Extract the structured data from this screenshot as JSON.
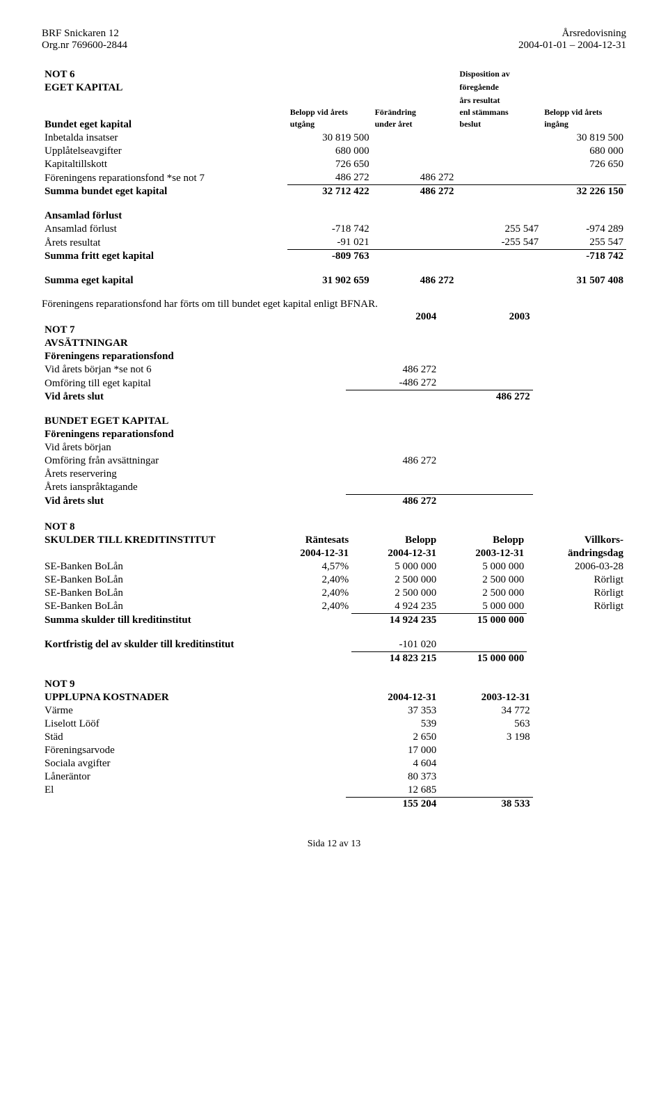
{
  "header": {
    "left1": "BRF Snickaren 12",
    "left2": "Org.nr 769600-2844",
    "right1": "Årsredovisning",
    "right2": "2004-01-01 – 2004-12-31"
  },
  "not6": {
    "title1": "NOT 6",
    "title2": "EGET KAPITAL",
    "col_labels": {
      "c2a": "Belopp vid årets",
      "c2b": "utgång",
      "c3a": "Förändring",
      "c3b": "under året",
      "c4a": "Disposition av",
      "c4b": "föregående",
      "c4c": "års resultat",
      "c4d": "enl stämmans",
      "c4e": "beslut",
      "c5a": "Belopp vid årets",
      "c5b": "ingång"
    },
    "section1_title": "Bundet eget kapital",
    "rows1": [
      {
        "label": "Inbetalda insatser",
        "c2": "30 819 500",
        "c3": "",
        "c4": "",
        "c5": "30 819 500"
      },
      {
        "label": "Upplåtelseavgifter",
        "c2": "680 000",
        "c3": "",
        "c4": "",
        "c5": "680 000"
      },
      {
        "label": "Kapitaltillskott",
        "c2": "726 650",
        "c3": "",
        "c4": "",
        "c5": "726 650"
      },
      {
        "label": "Föreningens reparationsfond *se not 7",
        "c2": "486 272",
        "c3": "486 272",
        "c4": "",
        "c5": ""
      }
    ],
    "sum1": {
      "label": "Summa bundet eget kapital",
      "c2": "32 712 422",
      "c3": "486 272",
      "c4": "",
      "c5": "32 226 150"
    },
    "section2_title": "Ansamlad förlust",
    "rows2": [
      {
        "label": "Ansamlad förlust",
        "c2": "-718 742",
        "c3": "",
        "c4": "255 547",
        "c5": "-974 289"
      },
      {
        "label": "Årets resultat",
        "c2": "-91 021",
        "c3": "",
        "c4": "-255 547",
        "c5": "255 547"
      }
    ],
    "sum2": {
      "label": "Summa fritt eget kapital",
      "c2": "-809 763",
      "c3": "",
      "c4": "",
      "c5": "-718 742"
    },
    "total": {
      "label": "Summa eget kapital",
      "c2": "31 902 659",
      "c3": "486 272",
      "c4": "",
      "c5": "31 507 408"
    },
    "note_text": "Föreningens reparationsfond har förts om till bundet eget kapital enligt BFNAR."
  },
  "not7": {
    "year_2004": "2004",
    "year_2003": "2003",
    "title1": "NOT 7",
    "title2": "AVSÄTTNINGAR",
    "sub1": "Föreningens reparationsfond",
    "rows1": [
      {
        "label": "Vid årets början *se not 6",
        "c2": "486 272",
        "c3": ""
      },
      {
        "label": "Omföring till eget kapital",
        "c2": "-486 272",
        "c3": ""
      }
    ],
    "sum1": {
      "label": "Vid årets slut",
      "c2": "",
      "c3": "486 272"
    },
    "bek_title": "BUNDET EGET KAPITAL",
    "sub2": "Föreningens reparationsfond",
    "rows2": [
      {
        "label": "Vid årets början",
        "c2": "",
        "c3": ""
      },
      {
        "label": "Omföring från avsättningar",
        "c2": "486 272",
        "c3": ""
      },
      {
        "label": "Årets reservering",
        "c2": "",
        "c3": ""
      },
      {
        "label": "Årets ianspråktagande",
        "c2": "",
        "c3": ""
      }
    ],
    "sum2": {
      "label": "Vid årets slut",
      "c2": "486 272",
      "c3": ""
    }
  },
  "not8": {
    "title1": "NOT 8",
    "title2": "SKULDER TILL KREDITINSTITUT",
    "headers": {
      "c2": "Räntesats",
      "c3": "Belopp",
      "c4": "Belopp",
      "c5": "Villkors-",
      "d2": "2004-12-31",
      "d3": "2004-12-31",
      "d4": "2003-12-31",
      "d5": "ändringsdag"
    },
    "rows": [
      {
        "label": "SE-Banken BoLån",
        "c2": "4,57%",
        "c3": "5 000 000",
        "c4": "5 000 000",
        "c5": "2006-03-28"
      },
      {
        "label": "SE-Banken BoLån",
        "c2": "2,40%",
        "c3": "2 500 000",
        "c4": "2 500 000",
        "c5": "Rörligt"
      },
      {
        "label": "SE-Banken BoLån",
        "c2": "2,40%",
        "c3": "2 500 000",
        "c4": "2 500 000",
        "c5": "Rörligt"
      },
      {
        "label": "SE-Banken BoLån",
        "c2": "2,40%",
        "c3": "4 924 235",
        "c4": "5 000 000",
        "c5": "Rörligt"
      }
    ],
    "sum": {
      "label": "Summa skulder till kreditinstitut",
      "c3": "14 924 235",
      "c4": "15 000 000"
    },
    "short": {
      "label": "Kortfristig del av skulder till kreditinstitut",
      "c3": "-101 020",
      "c4": ""
    },
    "net": {
      "c3": "14 823 215",
      "c4": "15 000 000"
    }
  },
  "not9": {
    "title1": "NOT 9",
    "title2": "UPPLUPNA KOSTNADER",
    "h1": "2004-12-31",
    "h2": "2003-12-31",
    "rows": [
      {
        "label": "Värme",
        "c2": "37 353",
        "c3": "34 772"
      },
      {
        "label": "Liselott Lööf",
        "c2": "539",
        "c3": "563"
      },
      {
        "label": "Städ",
        "c2": "2 650",
        "c3": "3 198"
      },
      {
        "label": "Föreningsarvode",
        "c2": "17 000",
        "c3": ""
      },
      {
        "label": "Sociala avgifter",
        "c2": "4 604",
        "c3": ""
      },
      {
        "label": "Låneräntor",
        "c2": "80 373",
        "c3": ""
      },
      {
        "label": "El",
        "c2": "12 685",
        "c3": ""
      }
    ],
    "sum": {
      "c2": "155 204",
      "c3": "38 533"
    }
  },
  "footer": "Sida 12 av 13"
}
